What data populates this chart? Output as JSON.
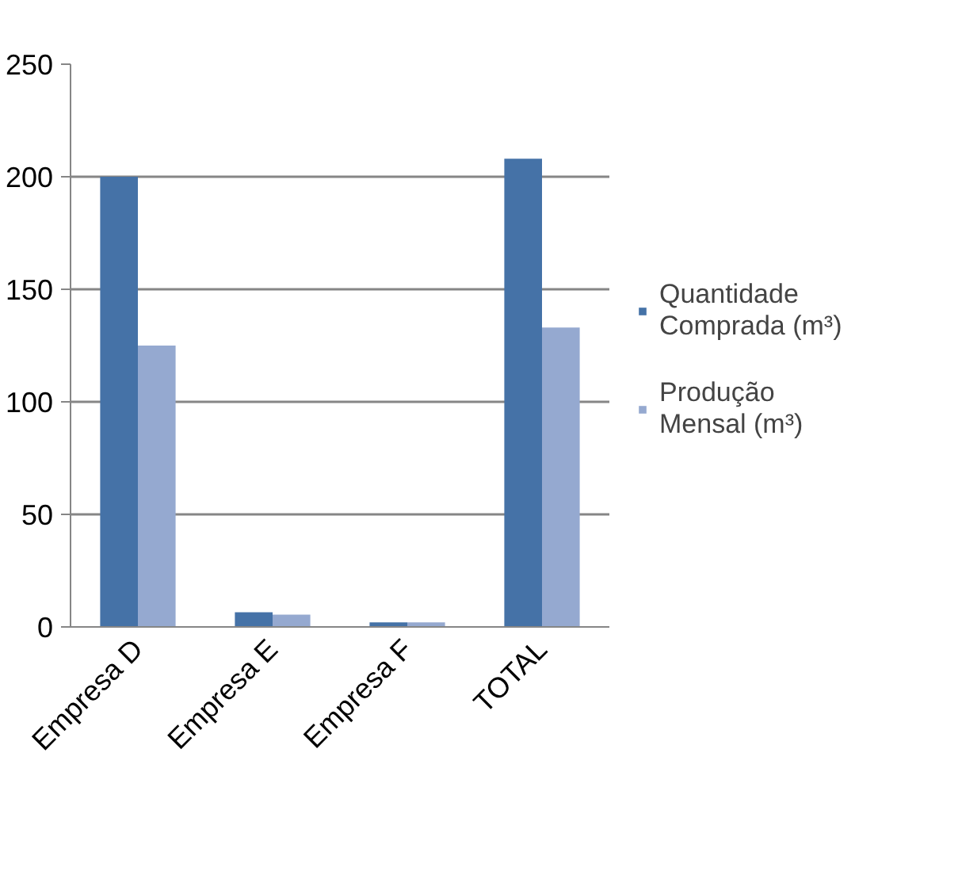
{
  "chart_data": {
    "type": "bar",
    "categories": [
      "Empresa D",
      "Empresa E",
      "Empresa F",
      "TOTAL"
    ],
    "series": [
      {
        "name": "Quantidade Comprada (m³)",
        "color": "#4572a7",
        "values": [
          200,
          6.5,
          2,
          208
        ]
      },
      {
        "name": "Produção Mensal (m³)",
        "color": "#95a9d0",
        "values": [
          125,
          5.5,
          2,
          133
        ]
      }
    ],
    "ylim": [
      0,
      250
    ],
    "yticks": [
      0,
      50,
      100,
      150,
      200,
      250
    ],
    "grid": "y",
    "legend": "right"
  }
}
